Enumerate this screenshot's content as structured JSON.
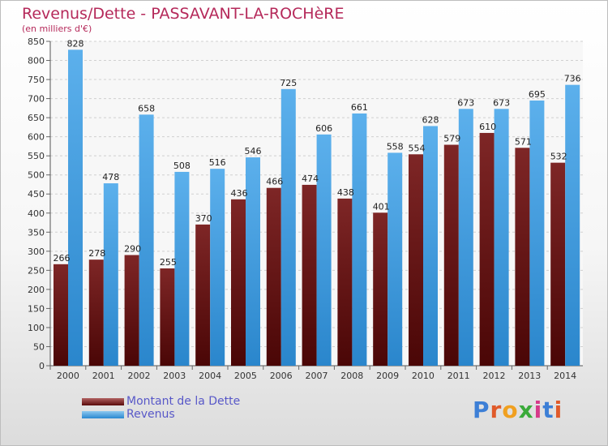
{
  "header": {
    "title": "Revenus/Dette - PASSAVANT-LA-ROCHèRE",
    "subtitle": "(en milliers d'€)"
  },
  "legend": {
    "items": [
      {
        "label": "Montant de la Dette",
        "color": "#7a1c1c"
      },
      {
        "label": "Revenus",
        "color": "#3d9ee0"
      }
    ]
  },
  "logo": {
    "text": "Proxiti",
    "colors": [
      "#3d7fd6",
      "#e05a2a",
      "#f0a020",
      "#3aaa3a",
      "#d63a8a",
      "#3d7fd6",
      "#e05a2a"
    ]
  },
  "chart_data": {
    "type": "bar",
    "title": "Revenus/Dette - PASSAVANT-LA-ROCHèRE",
    "subtitle": "(en milliers d'€)",
    "categories": [
      "2000",
      "2001",
      "2002",
      "2003",
      "2004",
      "2005",
      "2006",
      "2007",
      "2008",
      "2009",
      "2010",
      "2011",
      "2012",
      "2013",
      "2014"
    ],
    "series": [
      {
        "name": "Montant de la Dette",
        "values": [
          266,
          278,
          290,
          255,
          370,
          436,
          466,
          474,
          438,
          401,
          554,
          579,
          610,
          571,
          532
        ],
        "color": "#7a1c1c"
      },
      {
        "name": "Revenus",
        "values": [
          828,
          478,
          658,
          508,
          516,
          546,
          725,
          606,
          661,
          558,
          628,
          673,
          673,
          695,
          736
        ],
        "color": "#3d9ee0"
      }
    ],
    "ylim": [
      0,
      850
    ],
    "yticks": [
      0,
      50,
      100,
      150,
      200,
      250,
      300,
      350,
      400,
      450,
      500,
      550,
      600,
      650,
      700,
      750,
      800,
      850
    ],
    "grid": true,
    "legend": "bottom-left"
  }
}
